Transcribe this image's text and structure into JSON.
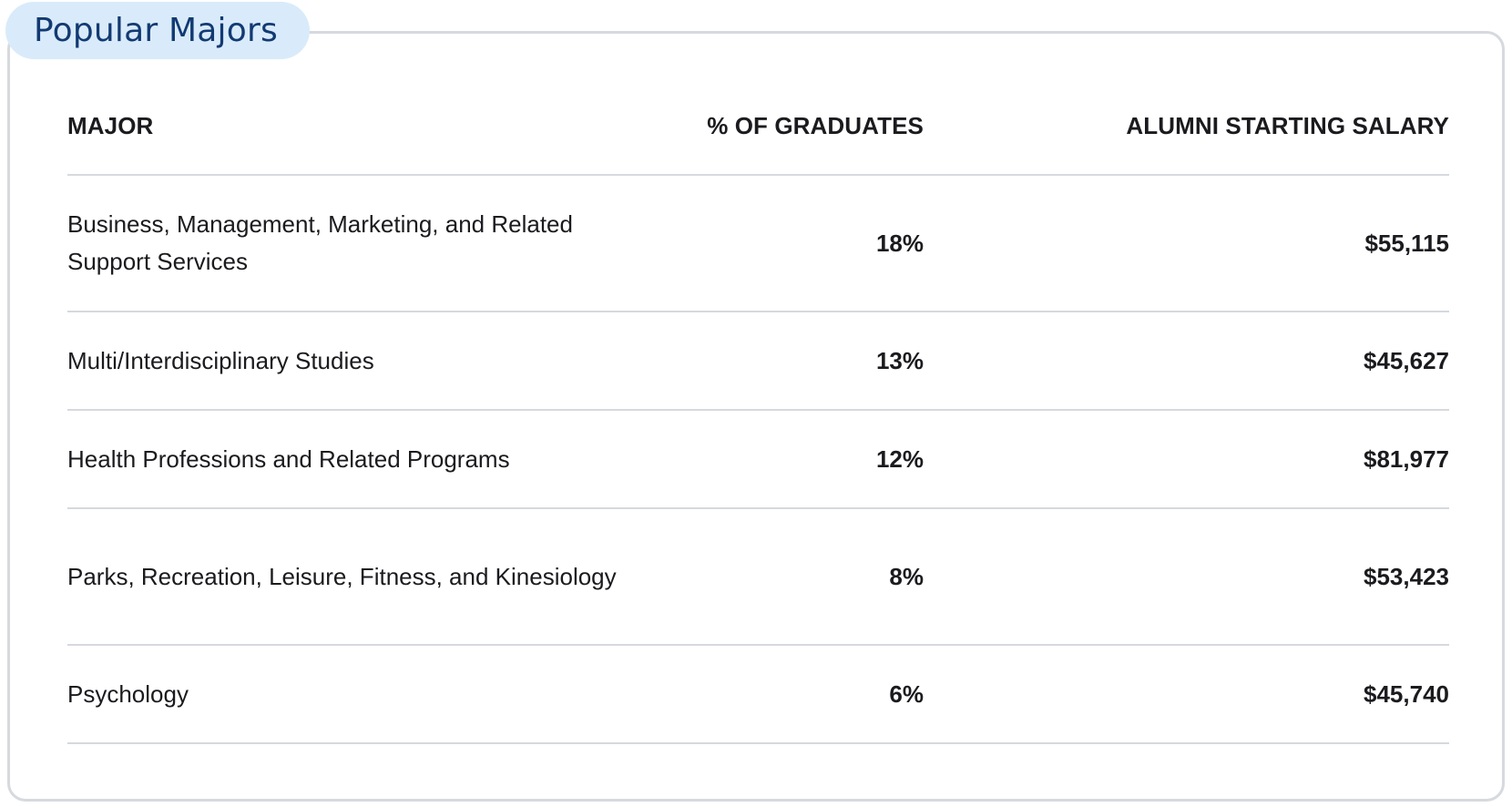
{
  "section": {
    "title": "Popular Majors"
  },
  "table": {
    "columns": [
      "MAJOR",
      "% OF GRADUATES",
      "ALUMNI STARTING SALARY"
    ],
    "rows": [
      {
        "major": "Business, Management, Marketing, and Related Support Services",
        "percent": "18%",
        "salary": "$55,115"
      },
      {
        "major": "Multi/Interdisciplinary Studies",
        "percent": "13%",
        "salary": "$45,627"
      },
      {
        "major": "Health Professions and Related Programs",
        "percent": "12%",
        "salary": "$81,977"
      },
      {
        "major": "Parks, Recreation, Leisure, Fitness, and Kinesiology",
        "percent": "8%",
        "salary": "$53,423"
      },
      {
        "major": "Psychology",
        "percent": "6%",
        "salary": "$45,740"
      }
    ]
  },
  "colors": {
    "tab_background": "#d9ebfa",
    "tab_text": "#123a73",
    "border": "#d6d9de",
    "text": "#1b1b1f"
  }
}
